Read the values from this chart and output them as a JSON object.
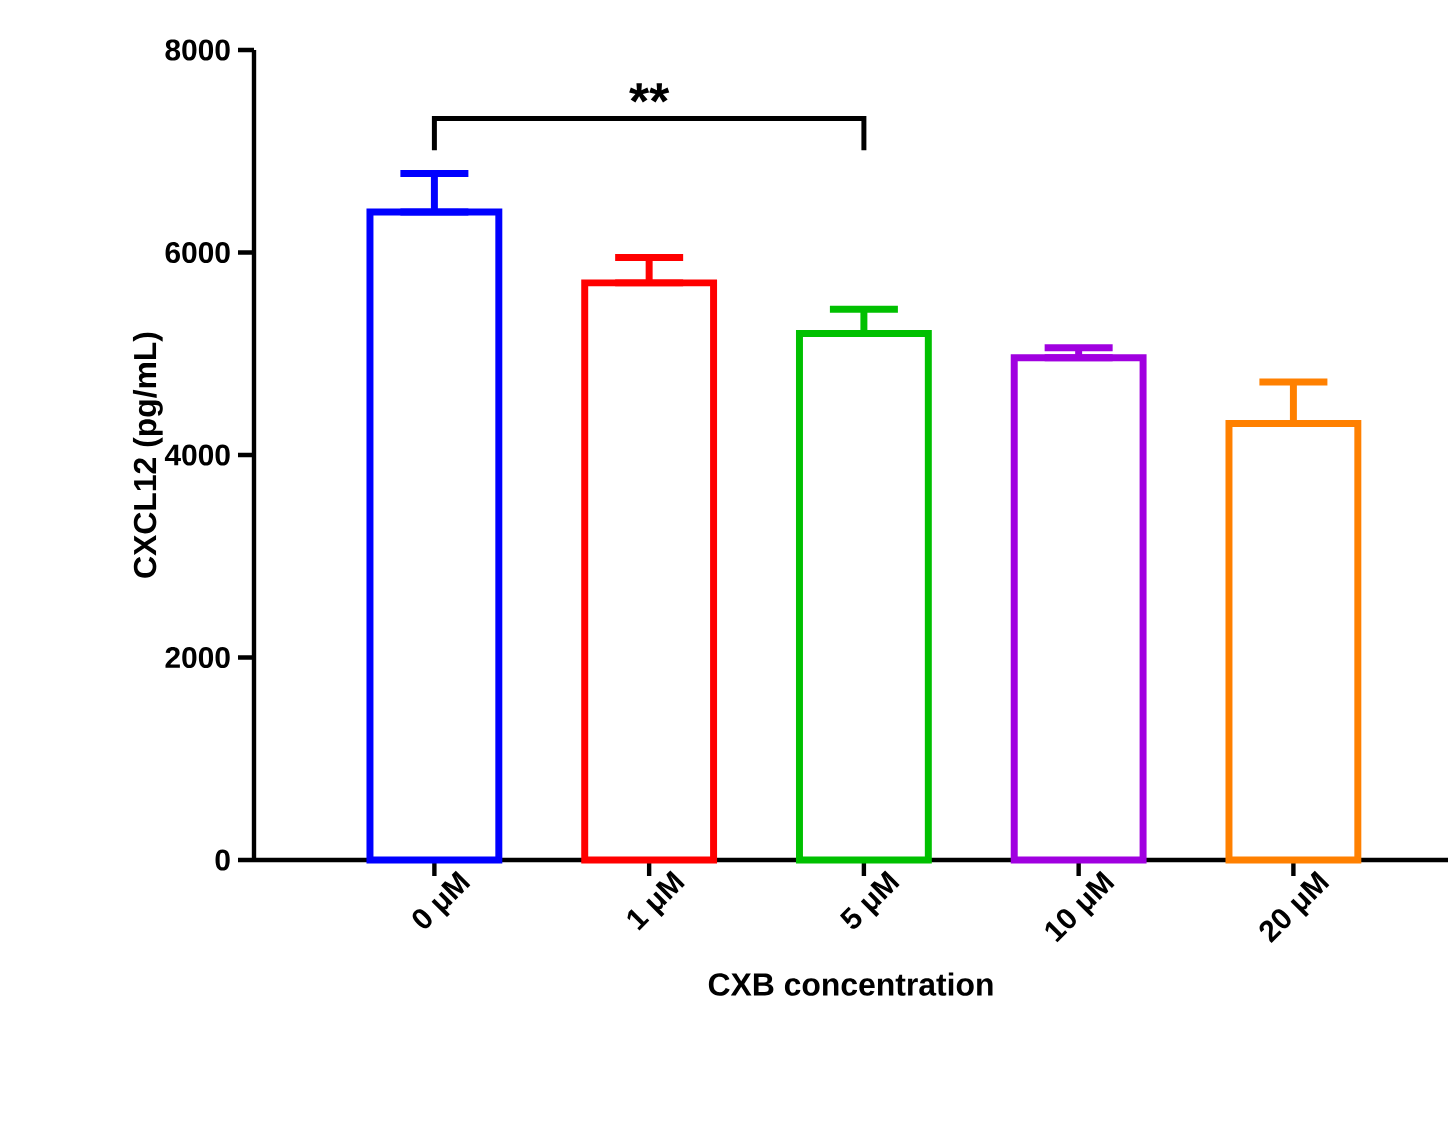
{
  "chart_data": {
    "type": "bar",
    "xlabel": "CXB concentration",
    "ylabel": "CXCL12 (pg/mL)",
    "categories": [
      "0 μM",
      "1 μM",
      "5 μM",
      "10 μM",
      "20 μM"
    ],
    "values": [
      6400,
      5700,
      5200,
      4960,
      4310
    ],
    "colors": [
      "#0000ff",
      "#ff0000",
      "#00c000",
      "#a000e0",
      "#ff8000"
    ],
    "errors": [
      [
        6400,
        6780
      ],
      [
        5700,
        5950
      ],
      [
        5200,
        5440
      ],
      [
        4960,
        5060
      ],
      [
        4310,
        4720
      ]
    ],
    "ylim": [
      0,
      8000
    ],
    "yticks": [
      0,
      2000,
      4000,
      6000,
      8000
    ],
    "grid": false,
    "annotations": [
      "**"
    ]
  }
}
